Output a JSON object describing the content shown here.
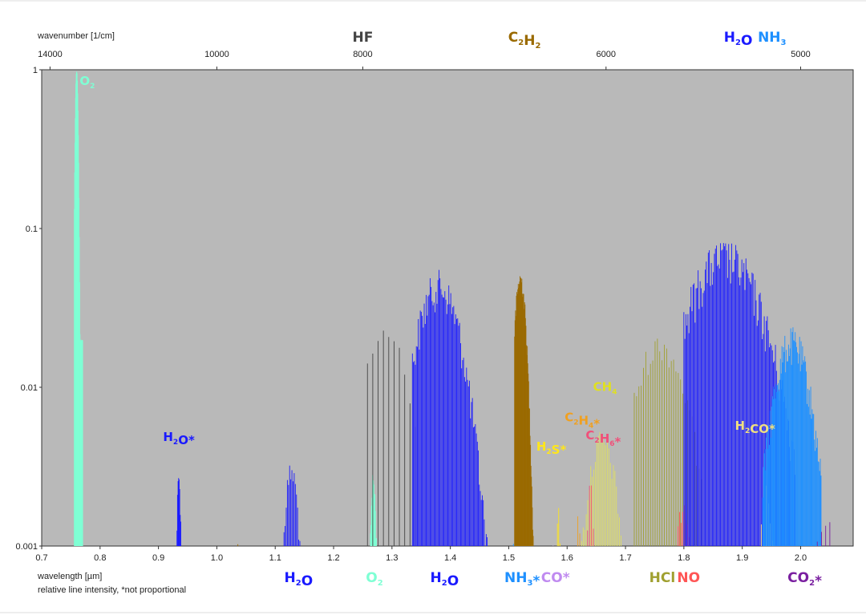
{
  "chart_data": {
    "type": "spectrum",
    "y_scale": "log",
    "xlim_um": [
      0.7,
      2.09
    ],
    "ylim": [
      0.001,
      1
    ],
    "grid": false,
    "background_color": "#b9b9b9",
    "top_axis": {
      "label": "wavenumber [1/cm]",
      "ticks": [
        {
          "value": 14000,
          "text": "14000"
        },
        {
          "value": 10000,
          "text": "10000"
        },
        {
          "value": 8000,
          "text": "8000"
        },
        {
          "value": 6000,
          "text": "6000"
        },
        {
          "value": 5000,
          "text": "5000"
        }
      ]
    },
    "bottom_axis": {
      "label": "wavelength [µm]",
      "note": "relative line intensity, *not proportional",
      "ticks": [
        "0.7",
        "0.8",
        "0.9",
        "1.0",
        "1.1",
        "1.2",
        "1.3",
        "1.4",
        "1.5",
        "1.6",
        "1.7",
        "1.8",
        "1.9",
        "2.0"
      ]
    },
    "y_ticks": [
      {
        "value": 1,
        "text": "1"
      },
      {
        "value": 0.1,
        "text": "0.1"
      },
      {
        "value": 0.01,
        "text": "0.01"
      },
      {
        "value": 0.001,
        "text": "0.001"
      }
    ],
    "bands": [
      {
        "species": "O2",
        "color": "#7fffd4",
        "start": 0.756,
        "end": 0.77,
        "center": 0.76,
        "peak": 1.0,
        "n": 26,
        "sigma": 0.002,
        "jitter": 0.03
      },
      {
        "species": "H2O*",
        "color": "#1a1aff",
        "start": 0.928,
        "end": 0.942,
        "center": 0.935,
        "peak": 0.003,
        "n": 16,
        "sigma": 0.003,
        "jitter": 0.3
      },
      {
        "species": "C2H2",
        "color": "#9a6a00",
        "start": 1.033,
        "end": 1.036,
        "center": 1.035,
        "peak": 0.0012,
        "n": 2,
        "sigma": 0.002,
        "jitter": 0.1
      },
      {
        "species": "H2O",
        "color": "#1a1aff",
        "start": 1.115,
        "end": 1.152,
        "center": 1.128,
        "peak": 0.0035,
        "n": 20,
        "sigma": 0.01,
        "jitter": 0.35
      },
      {
        "species": "O2",
        "color": "#7fffd4",
        "start": 1.258,
        "end": 1.276,
        "center": 1.268,
        "peak": 0.003,
        "n": 22,
        "sigma": 0.004,
        "jitter": 0.3
      },
      {
        "species": "HF",
        "color": "#444444",
        "start": 1.258,
        "end": 1.34,
        "center": 1.29,
        "peak": 0.025,
        "n": 10,
        "sigma": 0.03,
        "jitter": 0.2
      },
      {
        "species": "H2O",
        "color": "#1a1aff",
        "start": 1.335,
        "end": 1.485,
        "center": 1.38,
        "peak": 0.055,
        "n": 90,
        "sigma": 0.03,
        "jitter": 0.45
      },
      {
        "species": "NH3*",
        "color": "#1e90ff",
        "start": 1.508,
        "end": 1.515,
        "center": 1.511,
        "peak": 0.0016,
        "n": 3,
        "sigma": 0.004,
        "jitter": 0.2
      },
      {
        "species": "C2H2",
        "color": "#9a6a00",
        "start": 1.51,
        "end": 1.542,
        "center": 1.52,
        "peak": 0.055,
        "n": 42,
        "sigma": 0.008,
        "jitter": 0.25
      },
      {
        "species": "H2S*",
        "color": "#ffe61a",
        "start": 1.577,
        "end": 1.592,
        "center": 1.585,
        "peak": 0.0018,
        "n": 8,
        "sigma": 0.004,
        "jitter": 0.3
      },
      {
        "species": "CO*",
        "color": "#c08bf0",
        "start": 1.558,
        "end": 1.6,
        "center": 1.58,
        "peak": 0.0012,
        "n": 8,
        "sigma": 0.02,
        "jitter": 0.2
      },
      {
        "species": "C2H4*",
        "color": "#f0a020",
        "start": 1.615,
        "end": 1.625,
        "center": 1.62,
        "peak": 0.0018,
        "n": 4,
        "sigma": 0.004,
        "jitter": 0.3
      },
      {
        "species": "CH4",
        "color": "#e0e060",
        "start": 1.625,
        "end": 1.7,
        "center": 1.66,
        "peak": 0.0055,
        "n": 30,
        "sigma": 0.02,
        "jitter": 0.35
      },
      {
        "species": "C2H6*",
        "color": "#f0507a",
        "start": 1.635,
        "end": 1.645,
        "center": 1.64,
        "peak": 0.003,
        "n": 4,
        "sigma": 0.004,
        "jitter": 0.2
      },
      {
        "species": "HCl",
        "color": "#a0a030",
        "start": 1.715,
        "end": 1.83,
        "center": 1.76,
        "peak": 0.022,
        "n": 30,
        "sigma": 0.035,
        "jitter": 0.35
      },
      {
        "species": "NO",
        "color": "#ff5555",
        "start": 1.79,
        "end": 1.82,
        "center": 1.8,
        "peak": 0.0022,
        "n": 12,
        "sigma": 0.01,
        "jitter": 0.3
      },
      {
        "species": "H2O",
        "color": "#1a1aff",
        "start": 1.8,
        "end": 1.99,
        "center": 1.87,
        "peak": 0.085,
        "n": 110,
        "sigma": 0.05,
        "jitter": 0.5
      },
      {
        "species": "H2CO*",
        "color": "#f0e080",
        "start": 1.925,
        "end": 1.96,
        "center": 1.94,
        "peak": 0.0025,
        "n": 10,
        "sigma": 0.01,
        "jitter": 0.3
      },
      {
        "species": "NH3",
        "color": "#1e90ff",
        "start": 1.935,
        "end": 2.035,
        "center": 1.985,
        "peak": 0.024,
        "n": 80,
        "sigma": 0.025,
        "jitter": 0.45
      },
      {
        "species": "CO2*",
        "color": "#7a1fa0",
        "start": 2.0,
        "end": 2.05,
        "center": 2.045,
        "peak": 0.0018,
        "n": 8,
        "sigma": 0.02,
        "jitter": 0.3
      }
    ],
    "labels": [
      {
        "id": "o2-top",
        "base": "O",
        "sub": "2",
        "rest": "",
        "color": "#7fffd4",
        "size": 15,
        "anchor": "start",
        "x": 0.765,
        "yv": 0.8
      },
      {
        "id": "h2o-star",
        "base": "H",
        "sub": "2",
        "rest": "O*",
        "color": "#1a1aff",
        "size": 15,
        "anchor": "middle",
        "x": 0.935,
        "yv": 0.0046
      },
      {
        "id": "ch4",
        "base": "CH",
        "sub": "4",
        "rest": "",
        "color": "#e0e020",
        "size": 15,
        "anchor": "middle",
        "x": 1.665,
        "yv": 0.0095
      },
      {
        "id": "c2h4",
        "base": "C",
        "sub": "2",
        "mid": "H",
        "sub2": "4",
        "rest": "*",
        "color": "#f0a020",
        "size": 15,
        "anchor": "middle",
        "x": 1.626,
        "yv": 0.0061
      },
      {
        "id": "c2h6",
        "base": "C",
        "sub": "2",
        "mid": "H",
        "sub2": "6",
        "rest": "*",
        "color": "#f0507a",
        "size": 15,
        "anchor": "middle",
        "x": 1.662,
        "yv": 0.0047
      },
      {
        "id": "h2s",
        "base": "H",
        "sub": "2",
        "rest": "S*",
        "color": "#ffe61a",
        "size": 15,
        "anchor": "middle",
        "x": 1.573,
        "yv": 0.004
      },
      {
        "id": "h2co",
        "base": "H",
        "sub": "2",
        "rest": "CO*",
        "color": "#f0e080",
        "size": 15,
        "anchor": "middle",
        "x": 1.922,
        "yv": 0.0054
      },
      {
        "id": "hf",
        "base": "HF",
        "sub": "",
        "rest": "",
        "color": "#444444",
        "size": 17,
        "top": true,
        "x": 1.25
      },
      {
        "id": "c2h2-top",
        "base": "C",
        "sub": "2",
        "mid": "H",
        "sub2": "2",
        "rest": "",
        "color": "#9a6a00",
        "size": 17,
        "top": true,
        "x": 1.527
      },
      {
        "id": "h2o-top",
        "base": "H",
        "sub": "2",
        "rest": "O",
        "color": "#1a1aff",
        "size": 17,
        "top": true,
        "x": 1.893
      },
      {
        "id": "nh3-top",
        "base": "NH",
        "sub": "3",
        "rest": "",
        "color": "#1e90ff",
        "size": 17,
        "top": true,
        "x": 1.951
      },
      {
        "id": "h2o-b1",
        "base": "H",
        "sub": "2",
        "rest": "O",
        "color": "#1a1aff",
        "size": 17,
        "bottom": true,
        "x": 1.14
      },
      {
        "id": "o2-b",
        "base": "O",
        "sub": "2",
        "rest": "",
        "color": "#7fffd4",
        "size": 17,
        "bottom": true,
        "x": 1.27
      },
      {
        "id": "h2o-b2",
        "base": "H",
        "sub": "2",
        "rest": "O",
        "color": "#1a1aff",
        "size": 17,
        "bottom": true,
        "x": 1.39
      },
      {
        "id": "nh3-b",
        "base": "NH",
        "sub": "3",
        "rest": "*",
        "color": "#1e90ff",
        "size": 17,
        "bottom": true,
        "x": 1.523
      },
      {
        "id": "co-b",
        "base": "CO*",
        "sub": "",
        "rest": "",
        "color": "#c08bf0",
        "size": 17,
        "bottom": true,
        "x": 1.58
      },
      {
        "id": "hcl-b",
        "base": "HCl",
        "sub": "",
        "rest": "",
        "color": "#a0a030",
        "size": 17,
        "bottom": true,
        "x": 1.763
      },
      {
        "id": "no-b",
        "base": "NO",
        "sub": "",
        "rest": "",
        "color": "#ff5555",
        "size": 17,
        "bottom": true,
        "x": 1.808
      },
      {
        "id": "co2-b",
        "base": "CO",
        "sub": "2",
        "rest": "*",
        "color": "#7a1fa0",
        "size": 17,
        "bottom": true,
        "x": 2.007
      }
    ]
  }
}
